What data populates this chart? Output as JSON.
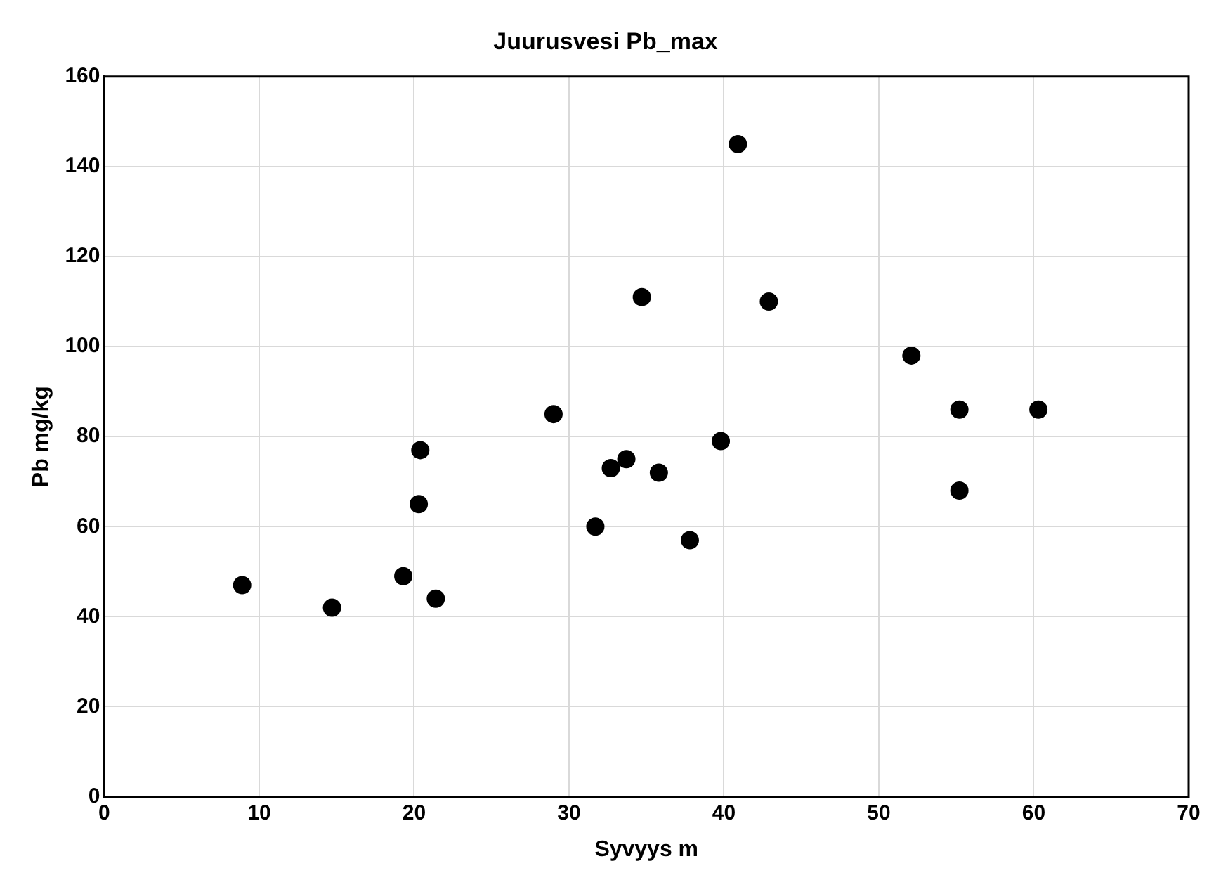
{
  "chart_data": {
    "type": "scatter",
    "title": "Juurusvesi Pb_max",
    "xlabel": "Syvyys m",
    "ylabel": "Pb mg/kg",
    "series": [
      {
        "color": "#000000",
        "x": [
          8.9,
          14.7,
          19.3,
          20.4,
          20.3,
          21.4,
          29,
          31.7,
          32.7,
          33.7,
          34.7,
          35.8,
          37.8,
          39.8,
          40.9,
          42.9,
          52.1,
          55.2,
          55.2,
          60.3
        ],
        "values": [
          47,
          42,
          49,
          77,
          65,
          44,
          85,
          60,
          73,
          75,
          111,
          72,
          57,
          79,
          145,
          110,
          98,
          86,
          68,
          86
        ]
      }
    ],
    "xlim": [
      0,
      70
    ],
    "xticks": [
      0,
      10,
      20,
      30,
      40,
      50,
      60,
      70
    ],
    "ylim": [
      0,
      160
    ],
    "yticks": [
      0,
      20,
      40,
      60,
      80,
      100,
      120,
      140,
      160
    ],
    "grid": true,
    "marker": "circle",
    "legend": false
  }
}
